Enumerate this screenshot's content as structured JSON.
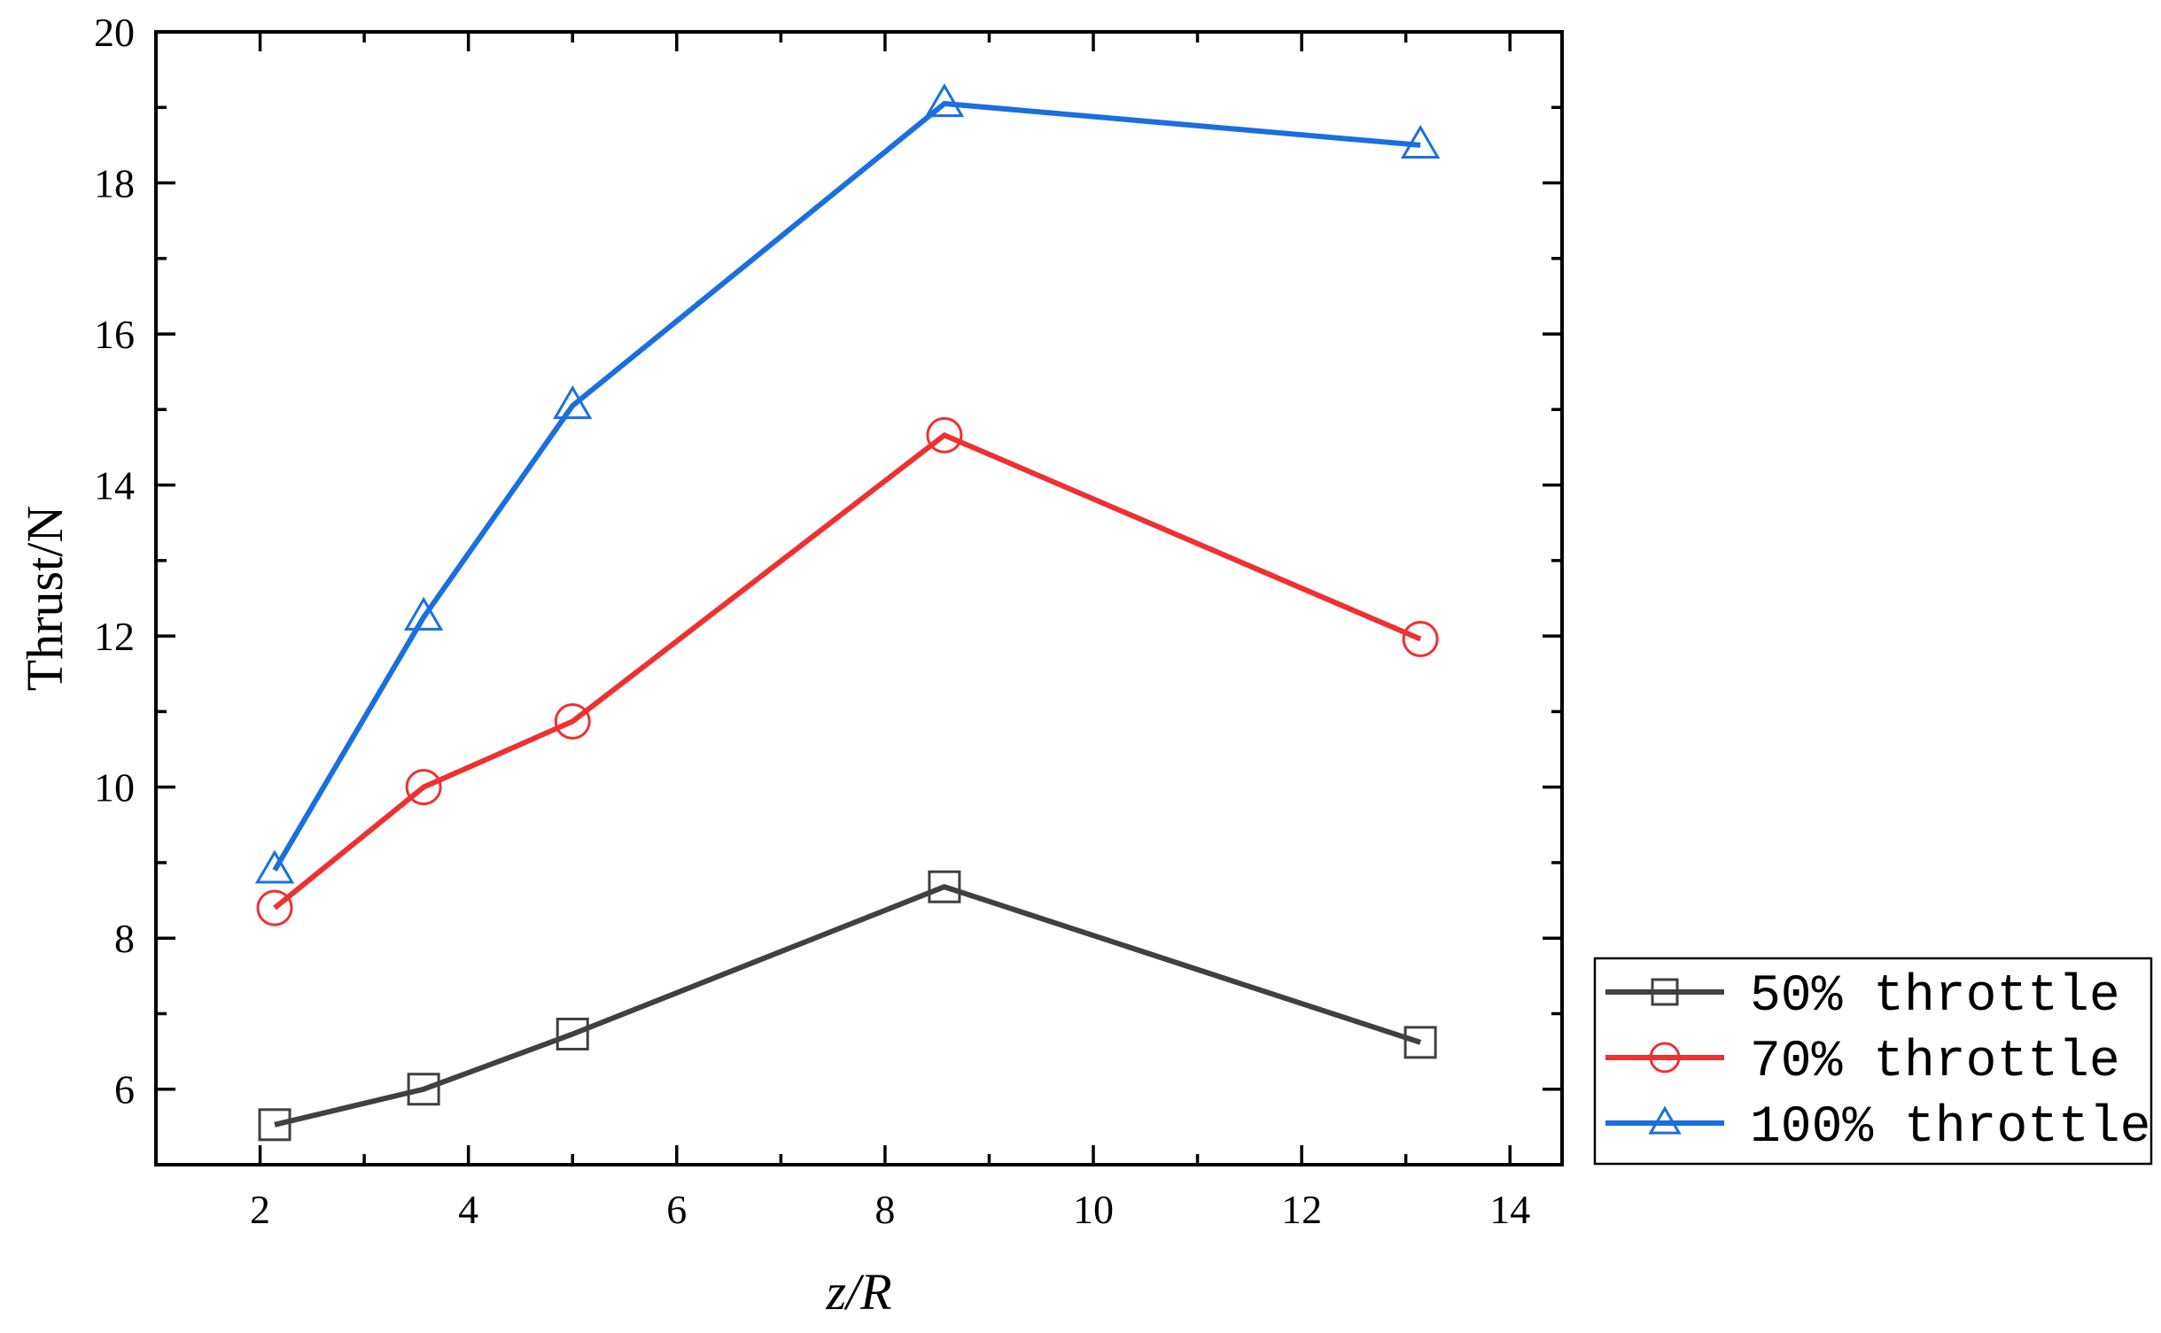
{
  "chart_data": {
    "type": "line",
    "xlabel": "z/R",
    "ylabel": "Thrust/N",
    "xlim": [
      1,
      14.5
    ],
    "ylim": [
      5,
      20
    ],
    "xticks": [
      2,
      4,
      6,
      8,
      10,
      12,
      14
    ],
    "yticks": [
      6,
      8,
      10,
      12,
      14,
      16,
      18,
      20
    ],
    "grid": false,
    "legend_position": "bottom-right, outside plot",
    "series": [
      {
        "name": "50% throttle",
        "color": "#404040",
        "marker": "square",
        "x": [
          2.14,
          3.57,
          5.0,
          8.57,
          13.14
        ],
        "y": [
          5.53,
          6.0,
          6.73,
          8.68,
          6.62
        ]
      },
      {
        "name": "70% throttle",
        "color": "#f03030",
        "marker": "circle",
        "x": [
          2.14,
          3.57,
          5.0,
          8.57,
          13.14
        ],
        "y": [
          8.4,
          10.0,
          10.87,
          14.66,
          11.96
        ]
      },
      {
        "name": "100% throttle",
        "color": "#1a6fdf",
        "marker": "triangle",
        "x": [
          2.14,
          3.57,
          5.0,
          8.57,
          13.14
        ],
        "y": [
          8.9,
          12.25,
          15.05,
          19.05,
          18.5
        ]
      }
    ]
  }
}
